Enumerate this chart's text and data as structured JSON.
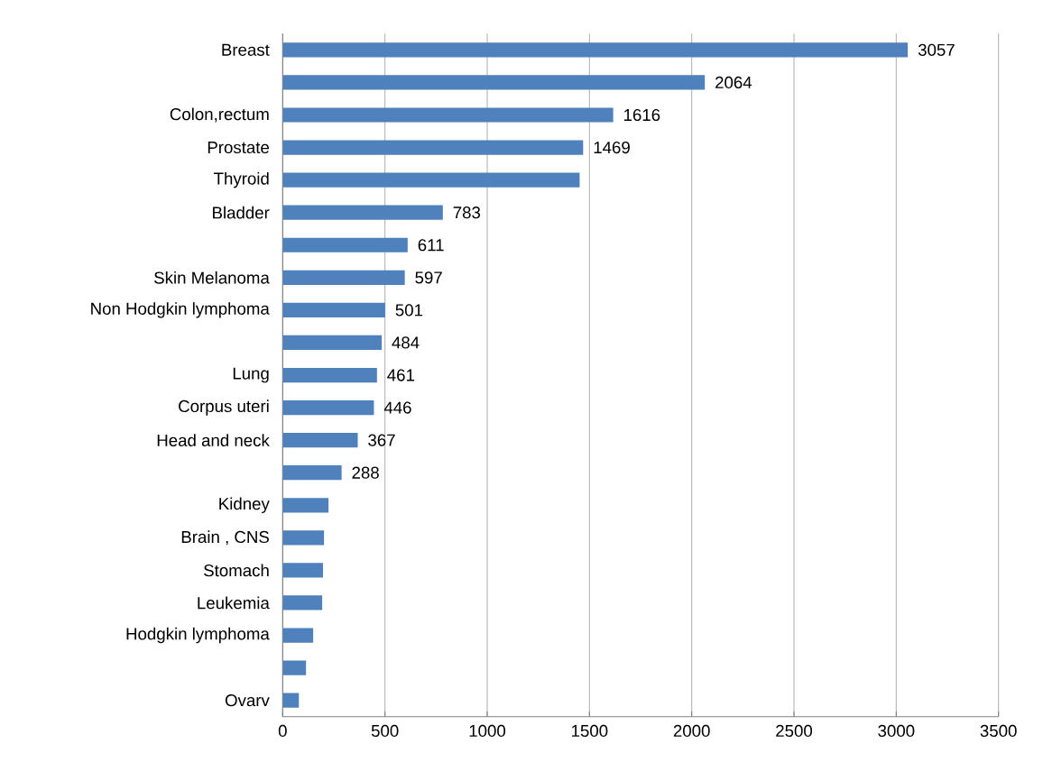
{
  "chart_data": {
    "type": "bar",
    "orientation": "horizontal",
    "color": "#4f81bd",
    "categories": [
      "Breast",
      null,
      "Colon,rectum",
      "Prostate",
      "Thyroid",
      "Bladder",
      null,
      "Skin Melanoma",
      "Non Hodgkin lymphoma",
      null,
      "Lung",
      "Corpus uteri",
      "Head and neck",
      null,
      "Kidney",
      "Brain , CNS",
      "Stomach",
      "Leukemia",
      "Hodgkin lymphoma",
      null,
      "Ovarv"
    ],
    "values": [
      3057,
      2064,
      1616,
      1469,
      1452,
      783,
      611,
      597,
      501,
      484,
      461,
      446,
      367,
      288,
      224,
      202,
      197,
      193,
      149,
      114,
      79
    ],
    "value_labels": [
      "3057",
      "2064",
      "1616",
      "1469",
      null,
      "783",
      "611",
      "597",
      "501",
      "484",
      "461",
      "446",
      "367",
      "288",
      null,
      null,
      null,
      null,
      null,
      null,
      null
    ],
    "xlim": [
      0,
      3500
    ],
    "xticks": [
      0,
      500,
      1000,
      1500,
      2000,
      2500,
      3000,
      3500
    ],
    "grid": "x"
  }
}
